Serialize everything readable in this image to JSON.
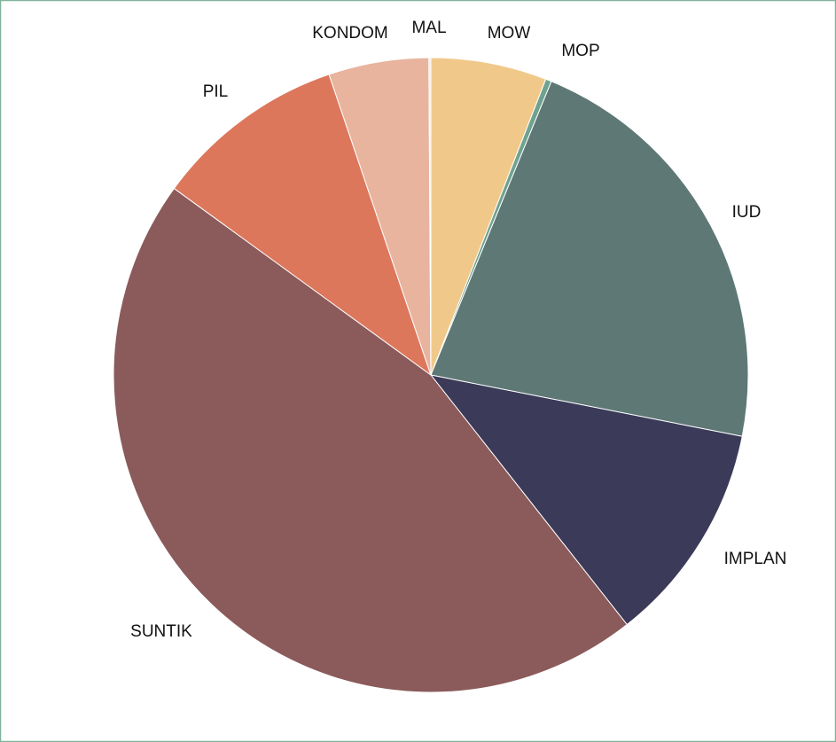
{
  "chart_data": {
    "type": "pie",
    "categories": [
      "MOW",
      "MOP",
      "IUD",
      "IMPLAN",
      "SUNTIK",
      "PIL",
      "KONDOM",
      "MAL"
    ],
    "values": [
      5.9,
      0.3,
      21.9,
      11.3,
      45.6,
      9.8,
      5.1,
      0.1
    ],
    "colors": [
      "#f0c98a",
      "#6fa28f",
      "#5e7876",
      "#3b3a58",
      "#8b5a5a",
      "#dd775c",
      "#e8b49e",
      "#f3e9dc"
    ]
  }
}
